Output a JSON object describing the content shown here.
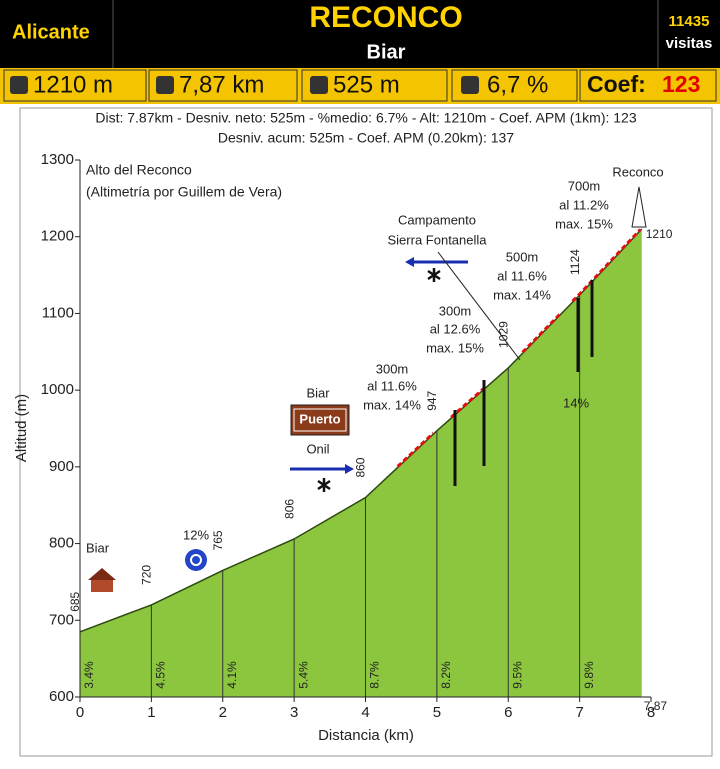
{
  "header": {
    "region": "Alicante",
    "title": "RECONCO",
    "subtitle": "Biar",
    "visits": "11435",
    "visits_label": "visitas"
  },
  "stats": {
    "altitude": "1210 m",
    "distance": "7,87 km",
    "climb": "525 m",
    "gradient": "6,7 %",
    "coef_label": "Coef:",
    "coef": "123"
  },
  "chart_data": {
    "type": "area",
    "subtitle": [
      "Dist: 7.87km - Desniv. neto: 525m - %medio: 6.7% - Alt: 1210m - Coef. APM (1km): 123",
      "Desniv. acum: 525m - Coef. APM (0.20km): 137"
    ],
    "x_label": "Distancia (km)",
    "y_label": "Altitud (m)",
    "x": [
      0,
      1,
      2,
      3,
      4,
      5,
      6,
      7,
      7.87
    ],
    "values": [
      685,
      720,
      765,
      806,
      860,
      947,
      1029,
      1124,
      1210
    ],
    "gradients": [
      3.4,
      4.5,
      4.1,
      5.4,
      8.7,
      8.2,
      9.5,
      9.8
    ],
    "gradient_labels": [
      "3.4%",
      "4.5%",
      "4.1%",
      "5.4%",
      "8.7%",
      "8.2%",
      "9.5%",
      "9.8%"
    ],
    "color": "#8cc63e",
    "xlim": [
      0,
      8
    ],
    "xticks": [
      0,
      1,
      2,
      3,
      4,
      5,
      6,
      7,
      8
    ],
    "ylim": [
      600,
      1300
    ],
    "yticks": [
      600,
      700,
      800,
      900,
      1000,
      1100,
      1200,
      1300
    ],
    "annotations": [
      "Alto del Reconco",
      "(Altimetría por Guillem de Vera)",
      "Biar",
      "12%",
      "Biar",
      "Puerto",
      "Onil",
      "Campamento",
      "Sierra Fontanella",
      "300m",
      "al 11.6%",
      "max. 14%",
      "300m",
      "al 12.6%",
      "max. 15%",
      "500m",
      "al 11.6%",
      "max. 14%",
      "700m",
      "al 11.2%",
      "max. 15%",
      "Reconco",
      "14%"
    ]
  }
}
